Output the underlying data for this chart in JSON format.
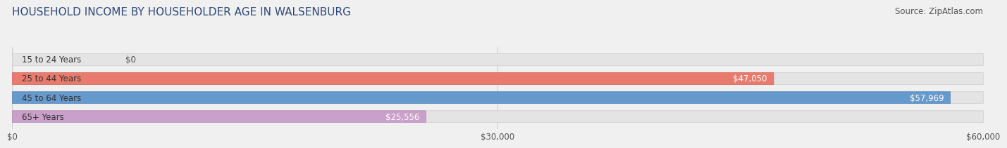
{
  "title": "HOUSEHOLD INCOME BY HOUSEHOLDER AGE IN WALSENBURG",
  "source": "Source: ZipAtlas.com",
  "categories": [
    "15 to 24 Years",
    "25 to 44 Years",
    "45 to 64 Years",
    "65+ Years"
  ],
  "values": [
    0,
    47050,
    57969,
    25556
  ],
  "bar_colors": [
    "#f5d7a8",
    "#e87b6e",
    "#6699cc",
    "#c9a0c9"
  ],
  "bar_edge_colors": [
    "#e0c090",
    "#d96055",
    "#5588bb",
    "#b888b8"
  ],
  "label_colors": [
    "#555555",
    "#ffffff",
    "#ffffff",
    "#555555"
  ],
  "xlim": [
    0,
    60000
  ],
  "xticks": [
    0,
    30000,
    60000
  ],
  "xtick_labels": [
    "$0",
    "$30,000",
    "$60,000"
  ],
  "background_color": "#f0f0f0",
  "bar_background_color": "#e4e4e4",
  "title_color": "#2d4a7a",
  "title_fontsize": 11,
  "source_fontsize": 8.5,
  "label_fontsize": 8.5,
  "bar_height": 0.62
}
